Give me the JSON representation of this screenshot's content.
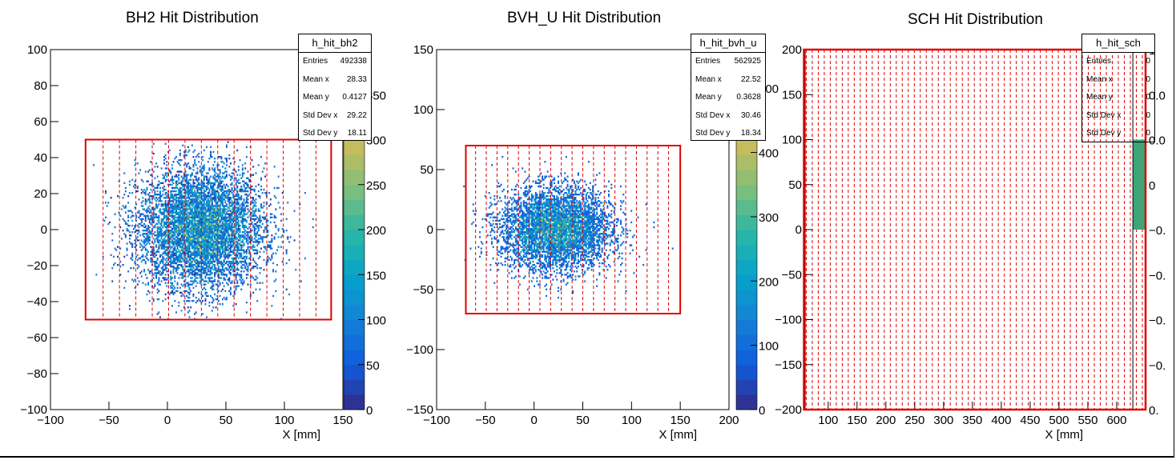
{
  "chart_data": [
    {
      "type": "heatmap",
      "title": "BH2 Hit Distribution",
      "xlabel": "X [mm]",
      "ylabel": "",
      "xlim": [
        -100,
        150
      ],
      "ylim": [
        -100,
        100
      ],
      "xticks": [
        "−100",
        "−50",
        "0",
        "50",
        "100",
        "150"
      ],
      "yticks": [
        "−100",
        "−80",
        "−60",
        "−40",
        "−20",
        "0",
        "20",
        "40",
        "60",
        "80",
        "100"
      ],
      "zticks": [
        "0",
        "50",
        "100",
        "150",
        "200",
        "250",
        "300",
        "350"
      ],
      "zmax": 400,
      "distribution": {
        "mean_x": 28.33,
        "mean_y": 0.4127,
        "std_x": 29.22,
        "std_y": 18.11,
        "x_range": [
          -65,
          142
        ],
        "y_range": [
          -50,
          50
        ]
      },
      "stats": {
        "name": "h_hit_bh2",
        "rows": [
          [
            "Entries",
            "492338"
          ],
          [
            "Mean x",
            "28.33"
          ],
          [
            "Mean y",
            "0.4127"
          ],
          [
            "Std Dev x",
            "29.22"
          ],
          [
            "Std Dev y",
            "18.11"
          ]
        ]
      },
      "acceptance_box": {
        "x": [
          -70,
          140
        ],
        "y": [
          -50,
          50
        ]
      },
      "segment_lines_x": [
        -55,
        -41,
        -27,
        -13,
        1,
        15,
        29,
        43,
        57,
        71,
        85,
        99,
        113,
        127
      ]
    },
    {
      "type": "heatmap",
      "title": "BVH_U Hit Distribution",
      "xlabel": "X [mm]",
      "ylabel": "",
      "xlim": [
        -100,
        200
      ],
      "ylim": [
        -150,
        150
      ],
      "xticks": [
        "−100",
        "−50",
        "0",
        "50",
        "100",
        "150",
        "200"
      ],
      "yticks": [
        "−150",
        "−100",
        "−50",
        "0",
        "50",
        "100",
        "150"
      ],
      "zticks": [
        "0",
        "100",
        "200",
        "300",
        "400",
        "500"
      ],
      "zmax": 560,
      "distribution": {
        "mean_x": 22.52,
        "mean_y": 0.3628,
        "std_x": 30.46,
        "std_y": 18.34,
        "x_range": [
          -75,
          145
        ],
        "y_range": [
          -68,
          68
        ]
      },
      "stats": {
        "name": "h_hit_bvh_u",
        "rows": [
          [
            "Entries",
            "562925"
          ],
          [
            "Mean x",
            "22.52"
          ],
          [
            "Mean y",
            "0.3628"
          ],
          [
            "Std Dev x",
            "30.46"
          ],
          [
            "Std Dev y",
            "18.34"
          ]
        ]
      },
      "acceptance_box": {
        "x": [
          -70,
          150
        ],
        "y": [
          -70,
          70
        ]
      },
      "segment_lines_x": [
        -60,
        -49,
        -38,
        -27,
        -16,
        -5,
        6,
        17,
        28,
        39,
        50,
        61,
        72,
        83,
        94,
        105,
        116,
        127,
        138
      ]
    },
    {
      "type": "heatmap",
      "title": "SCH Hit Distribution",
      "xlabel": "X [mm]",
      "ylabel": "",
      "xlim": [
        60,
        650
      ],
      "ylim": [
        -200,
        200
      ],
      "xticks": [
        "100",
        "150",
        "200",
        "250",
        "300",
        "350",
        "400",
        "450",
        "500",
        "550",
        "600"
      ],
      "yticks": [
        "−200",
        "−150",
        "−100",
        "−50",
        "0",
        "50",
        "100",
        "150",
        "200"
      ],
      "stats": {
        "name": "h_hit_sch",
        "rows": [
          [
            "Entries",
            "0"
          ],
          [
            "Mean x",
            "0"
          ],
          [
            "Mean y",
            "0"
          ],
          [
            "Std Dev x",
            "0"
          ],
          [
            "Std Dev y",
            "0"
          ]
        ]
      },
      "palette_labels": [
        "1",
        "0.0",
        "0.0",
        "0",
        "−0.",
        "−0.",
        "−0.",
        "−0.",
        "0."
      ],
      "acceptance_box": {
        "x": [
          58,
          650
        ],
        "y": [
          -200,
          200
        ]
      }
    }
  ],
  "colors": {
    "frame": "#000000",
    "acceptance": "#e00000",
    "palette": [
      "#352a87",
      "#0f5cdd",
      "#1481d6",
      "#06a4ca",
      "#2eb7a4",
      "#87bf77",
      "#d1bb59",
      "#fec832",
      "#f9fb0e"
    ],
    "sch_bar": "#3ea578"
  }
}
